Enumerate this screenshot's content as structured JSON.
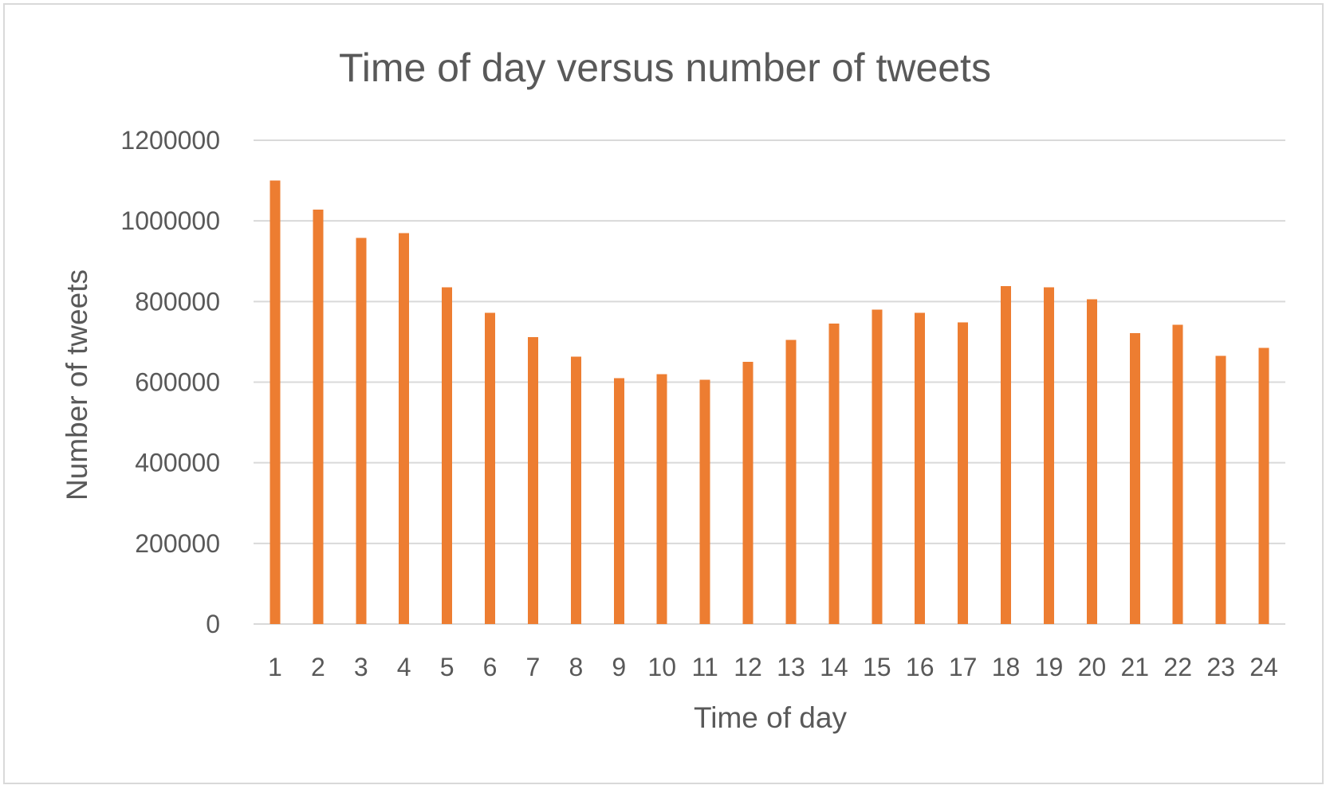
{
  "chart_data": {
    "type": "bar",
    "title": "Time of day versus number of tweets",
    "xlabel": "Time of day",
    "ylabel": "Number of tweets",
    "categories": [
      "1",
      "2",
      "3",
      "4",
      "5",
      "6",
      "7",
      "8",
      "9",
      "10",
      "11",
      "12",
      "13",
      "14",
      "15",
      "16",
      "17",
      "18",
      "19",
      "20",
      "21",
      "22",
      "23",
      "24"
    ],
    "values": [
      1100000,
      1028000,
      958000,
      970000,
      835000,
      772000,
      712000,
      663000,
      610000,
      620000,
      606000,
      650000,
      705000,
      745000,
      780000,
      772000,
      748000,
      838000,
      835000,
      806000,
      722000,
      742000,
      665000,
      685000
    ],
    "ylim": [
      0,
      1200000
    ],
    "yticks": [
      "0",
      "200000",
      "400000",
      "600000",
      "800000",
      "1000000",
      "1200000"
    ],
    "ytick_values": [
      0,
      200000,
      400000,
      600000,
      800000,
      1000000,
      1200000
    ],
    "grid": true,
    "legend": "none",
    "bar_color": "#ed7d31",
    "grid_color": "#d9d9d9",
    "text_color": "#595959"
  }
}
